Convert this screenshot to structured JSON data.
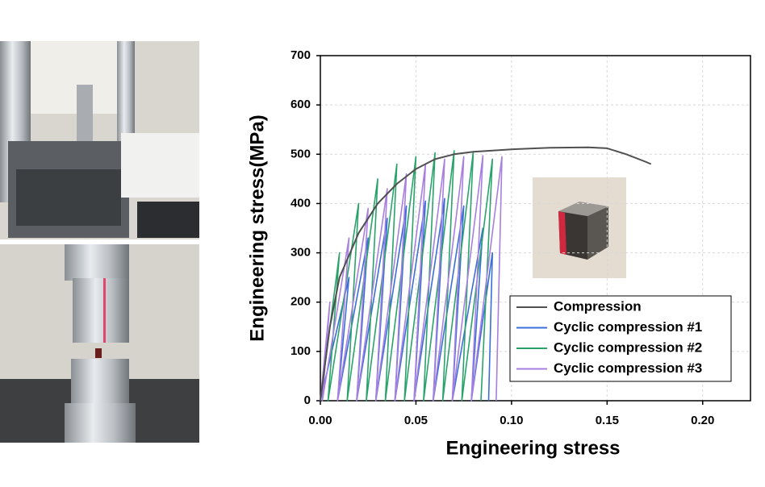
{
  "chart_data": {
    "type": "line",
    "xlabel": "Engineering stress",
    "ylabel": "Engineering stress(MPa)",
    "xlim": [
      0,
      0.225
    ],
    "ylim": [
      0,
      700
    ],
    "xticks": [
      {
        "value": 0,
        "label": "0.00"
      },
      {
        "value": 0.05,
        "label": "0.05"
      },
      {
        "value": 0.1,
        "label": "0.10"
      },
      {
        "value": 0.15,
        "label": "0.15"
      },
      {
        "value": 0.2,
        "label": "0.20"
      }
    ],
    "yticks": [
      0,
      100,
      200,
      300,
      400,
      500,
      600,
      700
    ],
    "grid": true,
    "legend": "lower right",
    "series": [
      {
        "name": "Compression",
        "color": "#505050",
        "x": [
          0,
          0.005,
          0.01,
          0.02,
          0.03,
          0.04,
          0.05,
          0.06,
          0.07,
          0.08,
          0.1,
          0.12,
          0.14,
          0.15,
          0.16,
          0.17,
          0.173
        ],
        "values": [
          0,
          150,
          250,
          340,
          400,
          440,
          470,
          490,
          500,
          505,
          510,
          513,
          514,
          512,
          500,
          485,
          480
        ]
      },
      {
        "name": "Cyclic compression #1",
        "color": "#3a6fd8",
        "x": [
          0,
          0.015,
          0.009,
          0.025,
          0.019,
          0.035,
          0.029,
          0.045,
          0.039,
          0.055,
          0.049,
          0.065,
          0.059,
          0.075,
          0.069,
          0.085,
          0.079,
          0.09,
          0.088
        ],
        "values": [
          0,
          250,
          0,
          330,
          0,
          370,
          0,
          395,
          0,
          405,
          0,
          410,
          0,
          395,
          0,
          350,
          0,
          300,
          0
        ]
      },
      {
        "name": "Cyclic compression #2",
        "color": "#2aa36b",
        "x": [
          0,
          0.01,
          0.004,
          0.02,
          0.014,
          0.03,
          0.024,
          0.04,
          0.034,
          0.05,
          0.044,
          0.06,
          0.054,
          0.07,
          0.064,
          0.08,
          0.074,
          0.09,
          0.084
        ],
        "values": [
          0,
          300,
          0,
          400,
          0,
          450,
          0,
          480,
          0,
          495,
          0,
          503,
          0,
          507,
          0,
          505,
          0,
          490,
          0
        ]
      },
      {
        "name": "Cyclic compression #3",
        "color": "#a77fe0",
        "x": [
          0,
          0.005,
          0.001,
          0.015,
          0.009,
          0.025,
          0.019,
          0.035,
          0.029,
          0.045,
          0.039,
          0.055,
          0.049,
          0.065,
          0.059,
          0.075,
          0.069,
          0.085,
          0.079,
          0.095,
          0.092
        ],
        "values": [
          0,
          200,
          0,
          330,
          0,
          390,
          0,
          430,
          0,
          460,
          0,
          480,
          0,
          490,
          0,
          495,
          0,
          497,
          0,
          495,
          0
        ]
      }
    ]
  }
}
